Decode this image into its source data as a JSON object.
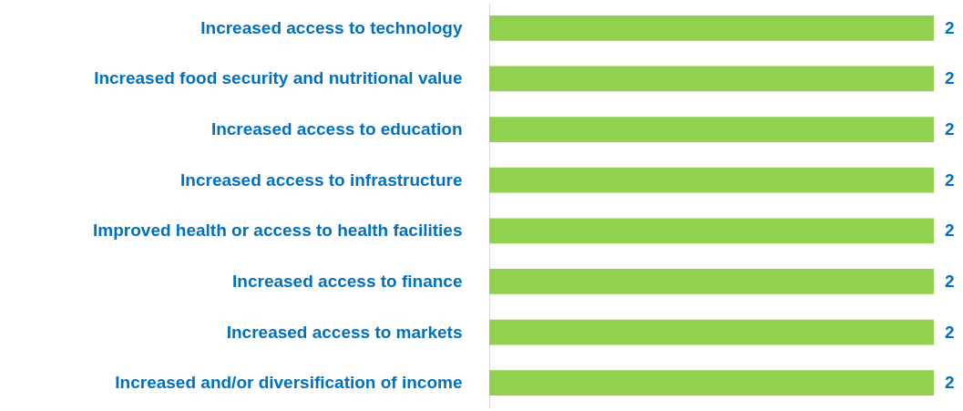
{
  "chart_data": {
    "type": "bar",
    "orientation": "horizontal",
    "categories": [
      "Increased access to technology",
      "Increased food security and nutritional value",
      "Increased access to education",
      "Increased access to infrastructure",
      "Improved health or access to health facilities",
      "Increased access to finance",
      "Increased access to markets",
      "Increased and/or diversification of income"
    ],
    "values": [
      2,
      2,
      2,
      2,
      2,
      2,
      2,
      2
    ],
    "color": "#92d050",
    "data_labels": true
  }
}
